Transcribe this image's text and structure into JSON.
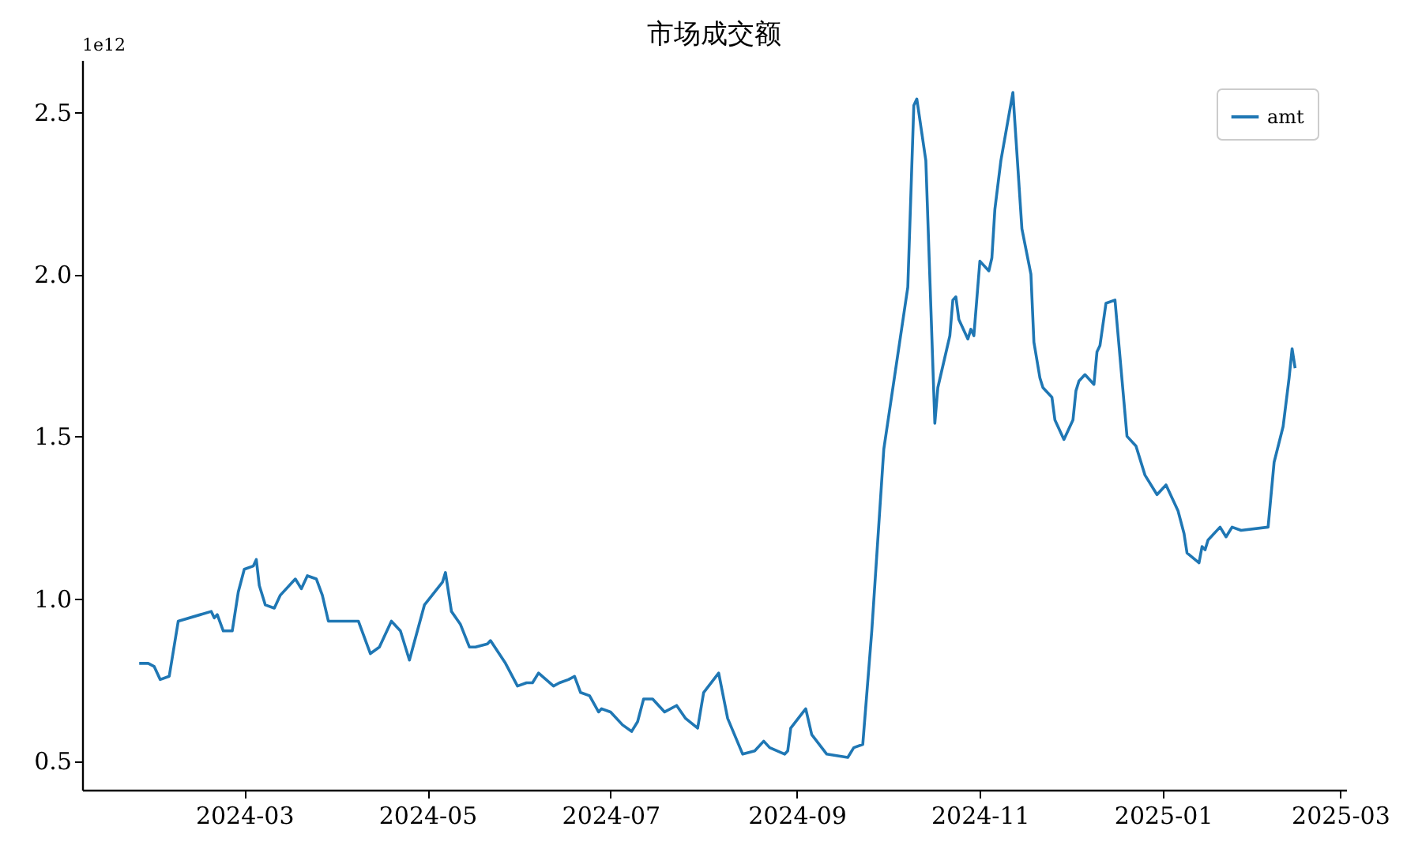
{
  "chart_data": {
    "type": "line",
    "title": "市场成交额",
    "annotations": [
      "1e12"
    ],
    "legend": "top right",
    "grid": false,
    "xlim": [
      "2024-01-07",
      "2025-03-03"
    ],
    "xticks": [
      {
        "value": "2024-03-01",
        "label": "2024-03"
      },
      {
        "value": "2024-05-01",
        "label": "2024-05"
      },
      {
        "value": "2024-07-01",
        "label": "2024-07"
      },
      {
        "value": "2024-09-01",
        "label": "2024-09"
      },
      {
        "value": "2024-11-01",
        "label": "2024-11"
      },
      {
        "value": "2025-01-01",
        "label": "2025-01"
      },
      {
        "value": "2025-03-01",
        "label": "2025-03"
      }
    ],
    "ylim": [
      0.41,
      2.66
    ],
    "yticks": [
      {
        "value": 0.5,
        "label": "0.5"
      },
      {
        "value": 1,
        "label": "1.0"
      },
      {
        "value": 1.5,
        "label": "1.5"
      },
      {
        "value": 2,
        "label": "2.0"
      },
      {
        "value": 2.5,
        "label": "2.5"
      }
    ],
    "x": [
      "2024-01-26",
      "2024-01-29",
      "2024-01-31",
      "2024-02-02",
      "2024-02-05",
      "2024-02-08",
      "2024-02-19",
      "2024-02-20",
      "2024-02-21",
      "2024-02-23",
      "2024-02-26",
      "2024-02-28",
      "2024-03-01",
      "2024-03-04",
      "2024-03-05",
      "2024-03-06",
      "2024-03-08",
      "2024-03-11",
      "2024-03-13",
      "2024-03-18",
      "2024-03-20",
      "2024-03-22",
      "2024-03-25",
      "2024-03-27",
      "2024-03-29",
      "2024-04-01",
      "2024-04-03",
      "2024-04-08",
      "2024-04-12",
      "2024-04-15",
      "2024-04-19",
      "2024-04-22",
      "2024-04-25",
      "2024-04-30",
      "2024-05-06",
      "2024-05-07",
      "2024-05-09",
      "2024-05-12",
      "2024-05-15",
      "2024-05-17",
      "2024-05-21",
      "2024-05-22",
      "2024-05-27",
      "2024-05-31",
      "2024-06-03",
      "2024-06-05",
      "2024-06-07",
      "2024-06-12",
      "2024-06-14",
      "2024-06-17",
      "2024-06-19",
      "2024-06-21",
      "2024-06-24",
      "2024-06-27",
      "2024-06-28",
      "2024-07-01",
      "2024-07-05",
      "2024-07-08",
      "2024-07-10",
      "2024-07-12",
      "2024-07-15",
      "2024-07-17",
      "2024-07-19",
      "2024-07-23",
      "2024-07-26",
      "2024-07-30",
      "2024-08-01",
      "2024-08-06",
      "2024-08-09",
      "2024-08-14",
      "2024-08-18",
      "2024-08-21",
      "2024-08-23",
      "2024-08-28",
      "2024-08-29",
      "2024-08-30",
      "2024-09-04",
      "2024-09-06",
      "2024-09-11",
      "2024-09-18",
      "2024-09-20",
      "2024-09-23",
      "2024-09-26",
      "2024-09-30",
      "2024-10-08",
      "2024-10-10",
      "2024-10-11",
      "2024-10-14",
      "2024-10-17",
      "2024-10-18",
      "2024-10-21",
      "2024-10-22",
      "2024-10-23",
      "2024-10-24",
      "2024-10-25",
      "2024-10-28",
      "2024-10-29",
      "2024-10-30",
      "2024-11-01",
      "2024-11-04",
      "2024-11-05",
      "2024-11-06",
      "2024-11-08",
      "2024-11-12",
      "2024-11-15",
      "2024-11-18",
      "2024-11-19",
      "2024-11-21",
      "2024-11-22",
      "2024-11-25",
      "2024-11-26",
      "2024-11-29",
      "2024-12-02",
      "2024-12-03",
      "2024-12-04",
      "2024-12-06",
      "2024-12-09",
      "2024-12-10",
      "2024-12-11",
      "2024-12-13",
      "2024-12-16",
      "2024-12-20",
      "2024-12-23",
      "2024-12-26",
      "2024-12-30",
      "2025-01-02",
      "2025-01-06",
      "2025-01-08",
      "2025-01-09",
      "2025-01-13",
      "2025-01-14",
      "2025-01-15",
      "2025-01-16",
      "2025-01-20",
      "2025-01-22",
      "2025-01-24",
      "2025-01-27",
      "2025-02-05",
      "2025-02-07",
      "2025-02-10",
      "2025-02-12",
      "2025-02-13",
      "2025-02-14"
    ],
    "series": [
      {
        "name": "amt",
        "color": "#1f77b4",
        "values": [
          0.8,
          0.8,
          0.79,
          0.75,
          0.76,
          0.93,
          0.96,
          0.94,
          0.95,
          0.9,
          0.9,
          1.02,
          1.09,
          1.1,
          1.12,
          1.04,
          0.98,
          0.97,
          1.01,
          1.06,
          1.03,
          1.07,
          1.06,
          1.01,
          0.93,
          0.93,
          0.93,
          0.93,
          0.83,
          0.85,
          0.93,
          0.9,
          0.81,
          0.98,
          1.05,
          1.08,
          0.96,
          0.92,
          0.85,
          0.85,
          0.86,
          0.87,
          0.8,
          0.73,
          0.74,
          0.74,
          0.77,
          0.73,
          0.74,
          0.75,
          0.76,
          0.71,
          0.7,
          0.65,
          0.66,
          0.65,
          0.61,
          0.59,
          0.62,
          0.69,
          0.69,
          0.67,
          0.65,
          0.67,
          0.63,
          0.6,
          0.71,
          0.77,
          0.63,
          0.52,
          0.53,
          0.56,
          0.54,
          0.52,
          0.53,
          0.6,
          0.66,
          0.58,
          0.52,
          0.51,
          0.54,
          0.55,
          0.9,
          1.46,
          1.96,
          2.52,
          2.54,
          2.35,
          1.54,
          1.65,
          1.77,
          1.81,
          1.92,
          1.93,
          1.86,
          1.8,
          1.83,
          1.81,
          2.04,
          2.01,
          2.05,
          2.2,
          2.35,
          2.56,
          2.14,
          2.0,
          1.79,
          1.68,
          1.65,
          1.62,
          1.55,
          1.49,
          1.55,
          1.64,
          1.67,
          1.69,
          1.66,
          1.76,
          1.78,
          1.91,
          1.92,
          1.5,
          1.47,
          1.38,
          1.32,
          1.35,
          1.27,
          1.2,
          1.14,
          1.11,
          1.16,
          1.15,
          1.18,
          1.22,
          1.19,
          1.22,
          1.21,
          1.22,
          1.42,
          1.53,
          1.68,
          1.77,
          1.71
        ]
      }
    ]
  }
}
